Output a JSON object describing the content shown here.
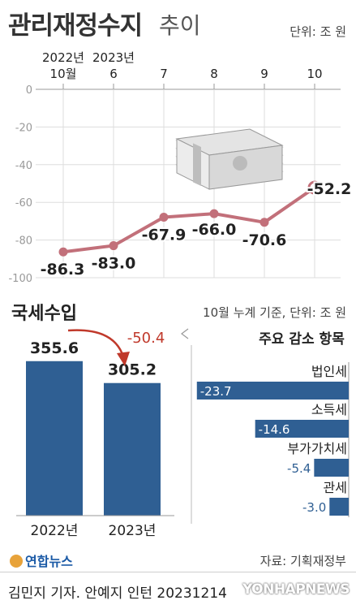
{
  "title": {
    "bold": "관리재정수지",
    "light": "추이"
  },
  "unit_top": "단위: 조 원",
  "section2": {
    "title": "국세수입",
    "unit": "10월 누계 기준, 단위: 조 원"
  },
  "source": "자료: 기획재정부",
  "logo": "연합뉴스",
  "credit": "김민지 기자. 안예지 인턴  20231214",
  "watermark": "YONHAPNEWS",
  "colors": {
    "accent": "#c2707a",
    "bar": "#2f5f93",
    "callout": "#c0392b",
    "grid": "#dddddd"
  },
  "icons": [
    "money-stack-icon",
    "down-arrow-icon"
  ],
  "chart_data": [
    {
      "type": "line",
      "title": "관리재정수지 추이",
      "x_top": [
        "2022년",
        "2023년",
        "",
        "",
        "",
        ""
      ],
      "categories": [
        "10월",
        "6",
        "7",
        "8",
        "9",
        "10"
      ],
      "values": [
        -86.3,
        -83.0,
        -67.9,
        -66.0,
        -70.6,
        -52.2
      ],
      "value_labels": [
        "-86.3",
        "-83.0",
        "-67.9",
        "-66.0",
        "-70.6",
        "-52.2"
      ],
      "y_ticks": [
        "0",
        "-20",
        "-40",
        "-60",
        "-80",
        "-100"
      ],
      "ylim": [
        -100,
        0
      ],
      "unit": "단위: 조 원",
      "grid": true
    },
    {
      "type": "bar",
      "title": "국세수입",
      "categories": [
        "2022년",
        "2023년"
      ],
      "values": [
        355.6,
        305.2
      ],
      "value_labels": [
        "355.6",
        "305.2"
      ],
      "annotation": "-50.4",
      "unit": "10월 누계 기준, 단위: 조 원"
    },
    {
      "type": "bar",
      "orientation": "horizontal",
      "title": "주요 감소 항목",
      "categories": [
        "법인세",
        "소득세",
        "부가가치세",
        "관세"
      ],
      "values": [
        -23.7,
        -14.6,
        -5.4,
        -3.0
      ],
      "value_labels": [
        "-23.7",
        "-14.6",
        "-5.4",
        "-3.0"
      ]
    }
  ]
}
